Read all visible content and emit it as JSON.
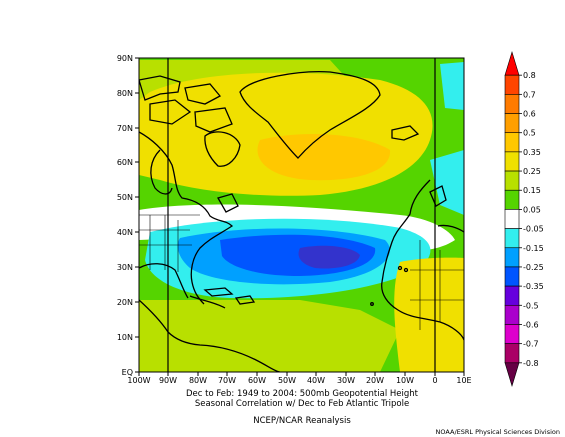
{
  "map": {
    "lat_labels": [
      "90N",
      "80N",
      "70N",
      "60N",
      "50N",
      "40N",
      "30N",
      "20N",
      "10N",
      "EQ"
    ],
    "lon_labels": [
      "100W",
      "90W",
      "80W",
      "70W",
      "60W",
      "50W",
      "40W",
      "30W",
      "20W",
      "10W",
      "0",
      "10E"
    ],
    "caption": {
      "line1": "Dec to Feb: 1949 to 2004: 500mb Geopotential Height",
      "line2": "Seasonal Correlation w/ Dec to Feb Atlantic Tripole",
      "line3": "NCEP/NCAR Reanalysis"
    },
    "credit": "NOAA/ESRL Physical Sciences Division",
    "colorbar": {
      "labels": [
        "0.8",
        "0.7",
        "0.6",
        "0.5",
        "0.35",
        "0.25",
        "0.15",
        "0.05",
        "-0.05",
        "-0.15",
        "-0.25",
        "-0.35",
        "-0.5",
        "-0.6",
        "-0.7",
        "-0.8"
      ],
      "colors": [
        "#ff0000",
        "#ff4500",
        "#ff7b00",
        "#ff9f00",
        "#ffc800",
        "#f0e000",
        "#b8e000",
        "#55d400",
        "#ffffff",
        "#33eeee",
        "#00a0ff",
        "#0055ff",
        "#6600dd",
        "#aa00cc",
        "#dd00cc",
        "#aa0066",
        "#660044"
      ]
    }
  }
}
